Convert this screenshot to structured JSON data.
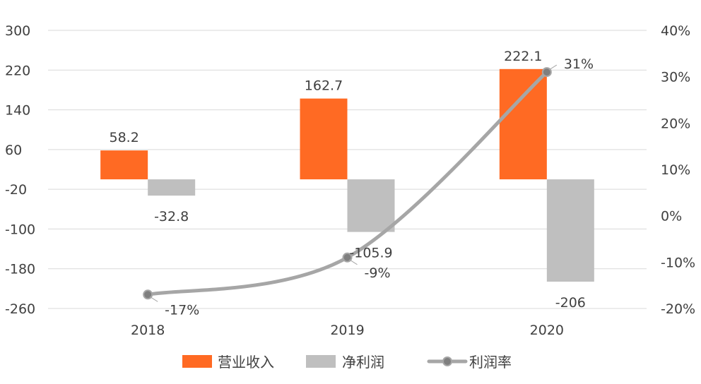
{
  "chart_data": {
    "type": "bar",
    "categories": [
      "2018",
      "2019",
      "2020"
    ],
    "series": [
      {
        "name": "营业收入",
        "kind": "bar",
        "axis": "left",
        "color": "#FF6A23",
        "values": [
          58.2,
          162.7,
          222.1
        ],
        "labels": [
          "58.2",
          "162.7",
          "222.1"
        ]
      },
      {
        "name": "净利润",
        "kind": "bar",
        "axis": "left",
        "color": "#BFBFBF",
        "values": [
          -32.8,
          -105.9,
          -206
        ],
        "labels": [
          "-32.8",
          "-105.9",
          "-206"
        ]
      },
      {
        "name": "利润率",
        "kind": "line",
        "axis": "right",
        "color": "#A6A6A6",
        "marker_color": "#7F7F7F",
        "values": [
          -17,
          -9,
          31
        ],
        "labels": [
          "-17%",
          "-9%",
          "31%"
        ]
      }
    ],
    "y_left": {
      "ticks": [
        300,
        220,
        140,
        60,
        -20,
        -100,
        -180,
        -260
      ],
      "tick_labels": [
        "300",
        "220",
        "140",
        "60",
        "-20",
        "-100",
        "-180",
        "-260"
      ],
      "ylim": [
        -260,
        300
      ]
    },
    "y_right": {
      "ticks": [
        40,
        30,
        20,
        10,
        0,
        -10,
        -20
      ],
      "tick_labels": [
        "40%",
        "30%",
        "20%",
        "10%",
        "0%",
        "-10%",
        "-20%"
      ],
      "ylim": [
        -20,
        40
      ]
    },
    "grid": true,
    "legend_position": "bottom"
  }
}
